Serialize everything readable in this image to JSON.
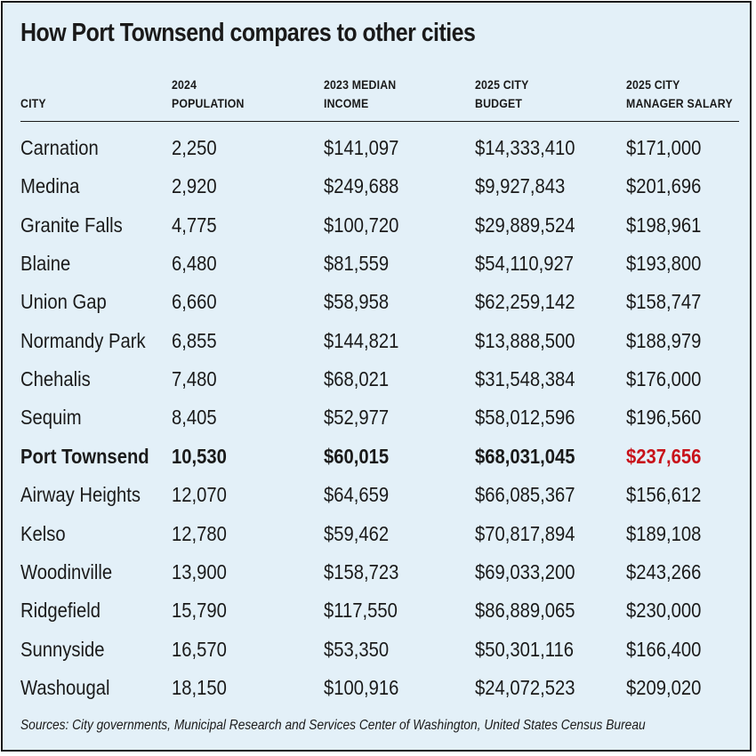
{
  "title": "How Port Townsend compares to other cities",
  "headers": {
    "city": "CITY",
    "population": [
      "2024",
      "POPULATION"
    ],
    "income": [
      "2023 MEDIAN",
      "INCOME"
    ],
    "budget": [
      "2025 CITY",
      "BUDGET"
    ],
    "salary": [
      "2025 CITY",
      "MANAGER SALARY"
    ]
  },
  "rows": [
    {
      "city": "Carnation",
      "population": "2,250",
      "income": "$141,097",
      "budget": "$14,333,410",
      "salary": "$171,000"
    },
    {
      "city": "Medina",
      "population": "2,920",
      "income": "$249,688",
      "budget": "$9,927,843",
      "salary": "$201,696"
    },
    {
      "city": "Granite Falls",
      "population": "4,775",
      "income": "$100,720",
      "budget": "$29,889,524",
      "salary": "$198,961"
    },
    {
      "city": "Blaine",
      "population": "6,480",
      "income": "$81,559",
      "budget": "$54,110,927",
      "salary": "$193,800"
    },
    {
      "city": "Union Gap",
      "population": "6,660",
      "income": "$58,958",
      "budget": "$62,259,142",
      "salary": "$158,747"
    },
    {
      "city": "Normandy Park",
      "population": "6,855",
      "income": "$144,821",
      "budget": "$13,888,500",
      "salary": "$188,979"
    },
    {
      "city": "Chehalis",
      "population": "7,480",
      "income": "$68,021",
      "budget": "$31,548,384",
      "salary": "$176,000"
    },
    {
      "city": "Sequim",
      "population": "8,405",
      "income": "$52,977",
      "budget": "$58,012,596",
      "salary": "$196,560"
    },
    {
      "city": "Port Townsend",
      "population": "10,530",
      "income": "$60,015",
      "budget": "$68,031,045",
      "salary": "$237,656",
      "highlight": true
    },
    {
      "city": "Airway Heights",
      "population": "12,070",
      "income": "$64,659",
      "budget": "$66,085,367",
      "salary": "$156,612"
    },
    {
      "city": "Kelso",
      "population": "12,780",
      "income": "$59,462",
      "budget": "$70,817,894",
      "salary": "$189,108"
    },
    {
      "city": "Woodinville",
      "population": "13,900",
      "income": "$158,723",
      "budget": "$69,033,200",
      "salary": "$243,266"
    },
    {
      "city": "Ridgefield",
      "population": "15,790",
      "income": "$117,550",
      "budget": "$86,889,065",
      "salary": "$230,000"
    },
    {
      "city": "Sunnyside",
      "population": "16,570",
      "income": "$53,350",
      "budget": "$50,301,116",
      "salary": "$166,400"
    },
    {
      "city": "Washougal",
      "population": "18,150",
      "income": "$100,916",
      "budget": "$24,072,523",
      "salary": "$209,020"
    }
  ],
  "source": "Sources: City governments, Municipal Research and Services Center of Washington, United States Census Bureau",
  "colors": {
    "background": "#e3f0f8",
    "text": "#1a1a1a",
    "highlight_salary": "#c8121a"
  }
}
